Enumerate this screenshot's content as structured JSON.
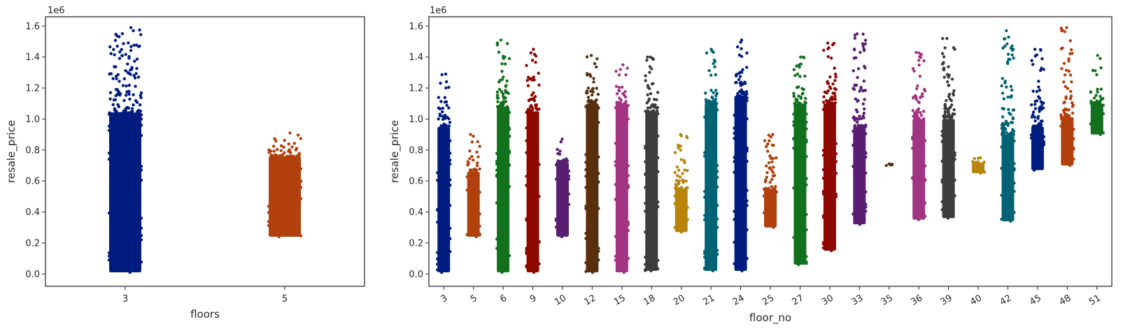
{
  "chart_data": [
    {
      "type": "scatter",
      "style": "stripplot",
      "xlabel": "floors",
      "ylabel": "resale_price",
      "y_offset_label": "1e6",
      "ylim": [
        -0.08,
        1.66
      ],
      "yticks": [
        0.0,
        0.2,
        0.4,
        0.6,
        0.8,
        1.0,
        1.2,
        1.4,
        1.6
      ],
      "grid": false,
      "categories": [
        "3",
        "5"
      ],
      "series": [
        {
          "category": "3",
          "min": 0.01,
          "dense_max": 1.03,
          "max": 1.59,
          "color": "#001c7f"
        },
        {
          "category": "5",
          "min": 0.24,
          "dense_max": 0.76,
          "max": 0.91,
          "color": "#b1400d"
        }
      ]
    },
    {
      "type": "scatter",
      "style": "stripplot",
      "xlabel": "floor_no",
      "ylabel": "resale_price",
      "y_offset_label": "1e6",
      "ylim": [
        -0.08,
        1.66
      ],
      "yticks": [
        0.0,
        0.2,
        0.4,
        0.6,
        0.8,
        1.0,
        1.2,
        1.4,
        1.6
      ],
      "grid": false,
      "categories": [
        "3",
        "5",
        "6",
        "9",
        "10",
        "12",
        "15",
        "18",
        "20",
        "21",
        "24",
        "25",
        "27",
        "30",
        "33",
        "35",
        "36",
        "39",
        "40",
        "42",
        "45",
        "48",
        "51"
      ],
      "series": [
        {
          "category": "3",
          "min": 0.01,
          "dense_max": 0.95,
          "max": 1.29,
          "color": "#001c7f"
        },
        {
          "category": "5",
          "min": 0.24,
          "dense_max": 0.66,
          "max": 0.9,
          "color": "#b1400d"
        },
        {
          "category": "6",
          "min": 0.01,
          "dense_max": 1.08,
          "max": 1.51,
          "color": "#12711c"
        },
        {
          "category": "9",
          "min": 0.01,
          "dense_max": 1.05,
          "max": 1.45,
          "color": "#8c0800"
        },
        {
          "category": "10",
          "min": 0.24,
          "dense_max": 0.72,
          "max": 0.87,
          "color": "#591e71"
        },
        {
          "category": "12",
          "min": 0.01,
          "dense_max": 1.1,
          "max": 1.41,
          "color": "#592f0d"
        },
        {
          "category": "15",
          "min": 0.01,
          "dense_max": 1.1,
          "max": 1.35,
          "color": "#a23582"
        },
        {
          "category": "18",
          "min": 0.02,
          "dense_max": 1.05,
          "max": 1.4,
          "color": "#3c3c3c"
        },
        {
          "category": "20",
          "min": 0.27,
          "dense_max": 0.55,
          "max": 0.9,
          "color": "#b8850a"
        },
        {
          "category": "21",
          "min": 0.02,
          "dense_max": 1.1,
          "max": 1.45,
          "color": "#006374"
        },
        {
          "category": "24",
          "min": 0.02,
          "dense_max": 1.15,
          "max": 1.51,
          "color": "#001c7f"
        },
        {
          "category": "25",
          "min": 0.3,
          "dense_max": 0.55,
          "max": 0.9,
          "color": "#b1400d"
        },
        {
          "category": "27",
          "min": 0.06,
          "dense_max": 1.1,
          "max": 1.4,
          "color": "#12711c"
        },
        {
          "category": "30",
          "min": 0.15,
          "dense_max": 1.1,
          "max": 1.49,
          "color": "#8c0800"
        },
        {
          "category": "33",
          "min": 0.32,
          "dense_max": 0.95,
          "max": 1.55,
          "color": "#591e71"
        },
        {
          "category": "35",
          "min": 0.7,
          "dense_max": 0.71,
          "max": 0.71,
          "color": "#592f0d"
        },
        {
          "category": "36",
          "min": 0.35,
          "dense_max": 1.0,
          "max": 1.43,
          "color": "#a23582"
        },
        {
          "category": "39",
          "min": 0.36,
          "dense_max": 1.0,
          "max": 1.52,
          "color": "#3c3c3c"
        },
        {
          "category": "40",
          "min": 0.65,
          "dense_max": 0.72,
          "max": 0.75,
          "color": "#b8850a"
        },
        {
          "category": "42",
          "min": 0.34,
          "dense_max": 0.9,
          "max": 1.57,
          "color": "#006374"
        },
        {
          "category": "45",
          "min": 0.67,
          "dense_max": 0.95,
          "max": 1.45,
          "color": "#001c7f"
        },
        {
          "category": "48",
          "min": 0.7,
          "dense_max": 1.0,
          "max": 1.59,
          "color": "#b1400d"
        },
        {
          "category": "51",
          "min": 0.9,
          "dense_max": 1.1,
          "max": 1.41,
          "color": "#12711c"
        }
      ]
    }
  ]
}
